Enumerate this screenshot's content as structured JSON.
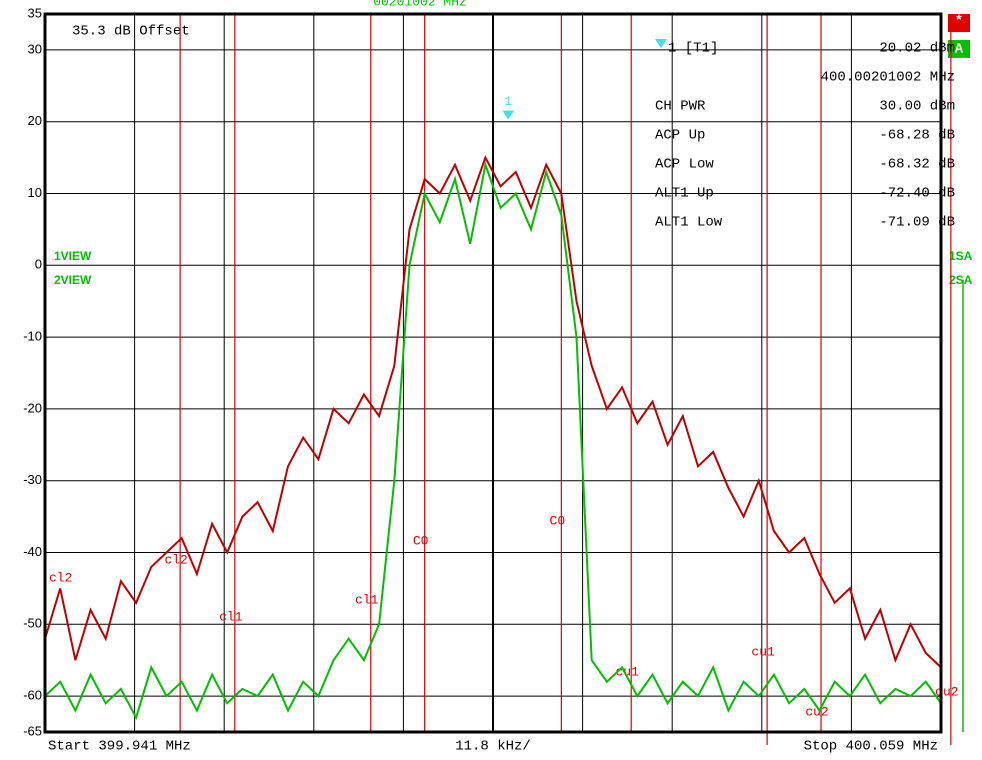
{
  "chart_data": {
    "type": "line",
    "offset_text": "35.3 dB Offset",
    "top_text": "00201002 MHz",
    "left_labels": [
      "1VIEW",
      "2VIEW"
    ],
    "right_labels": [
      "1SA",
      "2SA"
    ],
    "status_star": "*",
    "status_a": "A",
    "start_label": "Start 399.941 MHz",
    "span_label": "11.8 kHz/",
    "stop_label": "Stop 400.059 MHz",
    "xlim": [
      399.941,
      400.059
    ],
    "ylim": [
      -65,
      35
    ],
    "yticks": [
      35,
      30,
      20,
      10,
      0,
      -10,
      -20,
      -30,
      -40,
      -50,
      -60,
      -65
    ],
    "xgrid_divisions": 10,
    "grid": true,
    "x": [
      399.941,
      399.943,
      399.945,
      399.947,
      399.949,
      399.951,
      399.953,
      399.955,
      399.957,
      399.959,
      399.961,
      399.963,
      399.965,
      399.967,
      399.969,
      399.971,
      399.973,
      399.975,
      399.977,
      399.979,
      399.981,
      399.983,
      399.985,
      399.987,
      399.989,
      399.991,
      399.993,
      399.995,
      399.997,
      399.999,
      400.001,
      400.003,
      400.005,
      400.007,
      400.009,
      400.011,
      400.013,
      400.015,
      400.017,
      400.019,
      400.021,
      400.023,
      400.025,
      400.027,
      400.029,
      400.031,
      400.033,
      400.035,
      400.037,
      400.039,
      400.041,
      400.043,
      400.045,
      400.047,
      400.049,
      400.051,
      400.053,
      400.055,
      400.057,
      400.059
    ],
    "series": [
      {
        "name": "1",
        "color": "#c00000",
        "values": [
          -52,
          -45,
          -55,
          -48,
          -52,
          -44,
          -47,
          -42,
          -40,
          -38,
          -43,
          -36,
          -40,
          -35,
          -33,
          -37,
          -28,
          -24,
          -27,
          -20,
          -22,
          -18,
          -21,
          -14,
          5,
          12,
          10,
          14,
          9,
          15,
          11,
          13,
          8,
          14,
          10,
          -5,
          -14,
          -20,
          -17,
          -22,
          -19,
          -25,
          -21,
          -28,
          -26,
          -31,
          -35,
          -30,
          -37,
          -40,
          -38,
          -43,
          -47,
          -45,
          -52,
          -48,
          -55,
          -50,
          -54,
          -56
        ]
      },
      {
        "name": "2",
        "color": "#00c000",
        "values": [
          -60,
          -58,
          -62,
          -57,
          -61,
          -59,
          -63,
          -56,
          -60,
          -58,
          -62,
          -57,
          -61,
          -59,
          -60,
          -57,
          -62,
          -58,
          -60,
          -55,
          -52,
          -55,
          -50,
          -30,
          0,
          10,
          6,
          12,
          3,
          14,
          8,
          10,
          5,
          13,
          7,
          -10,
          -55,
          -58,
          -56,
          -60,
          -57,
          -61,
          -58,
          -60,
          -56,
          -62,
          -58,
          -60,
          -57,
          -61,
          -59,
          -62,
          -58,
          -60,
          -57,
          -61,
          -59,
          -60,
          -58,
          -61
        ]
      }
    ],
    "channel_markers": [
      {
        "label": "cl2",
        "x": 399.941
      },
      {
        "label": "cl2",
        "x": 399.9588
      },
      {
        "label": "cl1",
        "x": 399.966
      },
      {
        "label": "cl1",
        "x": 399.9839
      },
      {
        "label": "C0",
        "x": 399.991
      },
      {
        "label": "C0",
        "x": 400.009
      },
      {
        "label": "cu1",
        "x": 400.0182
      },
      {
        "label": "cu1",
        "x": 400.0361
      },
      {
        "label": "cu2",
        "x": 400.0432
      },
      {
        "label": "cu2",
        "x": 400.0603
      }
    ],
    "marker": {
      "label": "1",
      "x": 400.00201002,
      "y": 20.02
    },
    "marker_info": {
      "name": "1 [T1]",
      "level": "20.02 dBm",
      "frequency": "400.00201002 MHz"
    },
    "readouts": [
      {
        "label": "CH PWR",
        "value": "30.00 dBm"
      },
      {
        "label": "ACP Up",
        "value": "-68.28 dB"
      },
      {
        "label": "ACP Low",
        "value": "-68.32 dB"
      },
      {
        "label": "ALT1 Up",
        "value": "-72.40 dB"
      },
      {
        "label": "ALT1 Low",
        "value": "-71.09 dB"
      }
    ]
  }
}
